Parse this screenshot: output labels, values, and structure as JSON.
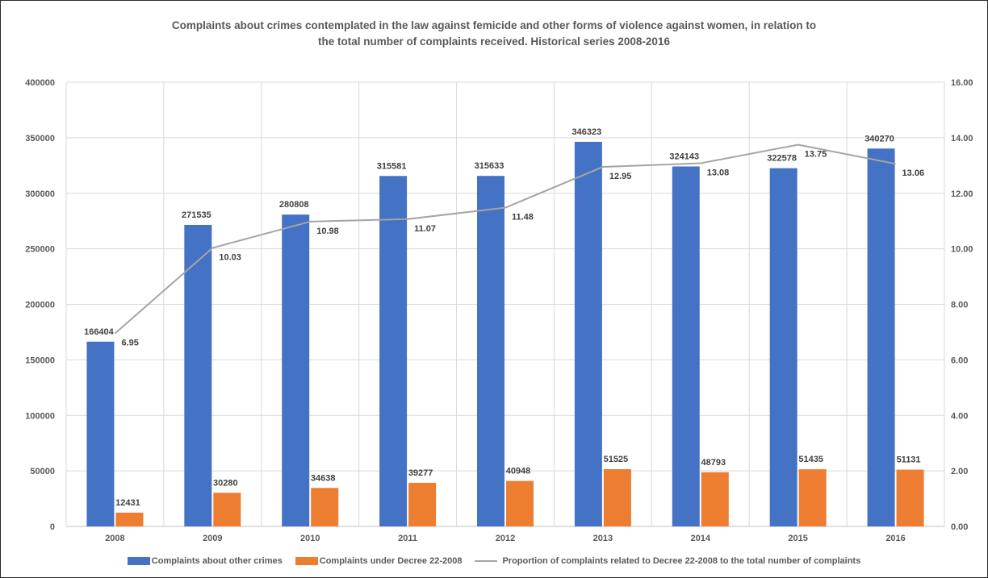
{
  "chart_data": {
    "type": "bar",
    "title": "Complaints about crimes contemplated in the law against femicide and other forms of violence against women, in relation to the total number of complaints received. Historical series 2008-2016",
    "categories": [
      "2008",
      "2009",
      "2010",
      "2011",
      "2012",
      "2013",
      "2014",
      "2015",
      "2016"
    ],
    "series": [
      {
        "name": "Complaints about other crimes",
        "kind": "bar",
        "axis": "left",
        "color": "#4472C4",
        "values": [
          166404,
          271535,
          280808,
          315581,
          315633,
          346323,
          324143,
          322578,
          340270
        ]
      },
      {
        "name": "Complaints under Decree 22-2008",
        "kind": "bar",
        "axis": "left",
        "color": "#ED7D31",
        "values": [
          12431,
          30280,
          34638,
          39277,
          40948,
          51525,
          48793,
          51435,
          51131
        ]
      },
      {
        "name": "Proportion of complaints related to Decree 22-2008 to the total number of complaints",
        "kind": "line",
        "axis": "right",
        "color": "#A5A5A5",
        "values": [
          6.95,
          10.03,
          10.98,
          11.07,
          11.48,
          12.95,
          13.08,
          13.75,
          13.06
        ],
        "labels": [
          "6.95",
          "10.03",
          "10.98",
          "11.07",
          "11.48",
          "12.95",
          "13.08",
          "13.75",
          "13.06"
        ]
      }
    ],
    "ylim": [
      0,
      400000
    ],
    "yticks": [
      "0",
      "50000",
      "100000",
      "150000",
      "200000",
      "250000",
      "300000",
      "350000",
      "400000"
    ],
    "y2lim": [
      0,
      16
    ],
    "y2ticks": [
      "0.00",
      "2.00",
      "4.00",
      "6.00",
      "8.00",
      "10.00",
      "12.00",
      "14.00",
      "16.00"
    ],
    "grid": true,
    "legend": "bottom"
  }
}
